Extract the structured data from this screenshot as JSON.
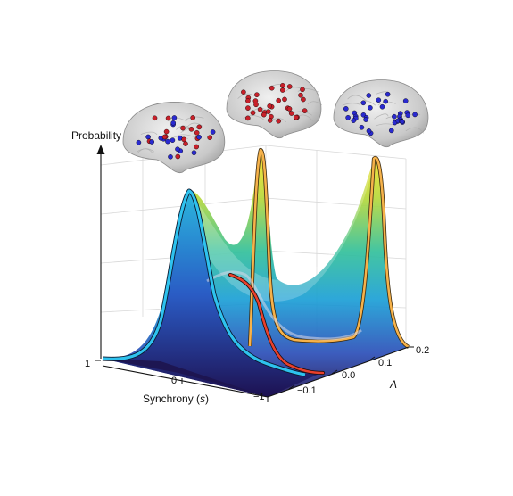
{
  "axes": {
    "vertical_label": "Probability",
    "synchrony_label_text": "Synchrony (",
    "synchrony_label_symbol": "s",
    "synchrony_label_close": ")",
    "lambda_label": "Λ",
    "synchrony_ticks": [
      "1",
      "0",
      "−1"
    ],
    "lambda_ticks": [
      "−0.1",
      "0.0",
      "0.1",
      "0.2"
    ]
  },
  "colors": {
    "front_curve": "#2ec2ee",
    "middle_curve": "#e8402c",
    "back_curve": "#f6b24a",
    "brain_red": "#c8202a",
    "brain_blue": "#2a2ad0",
    "surface_colormap": [
      "#2a1a6a",
      "#2c5cc4",
      "#1aa6d8",
      "#36c29a",
      "#b8d838",
      "#f6e02a"
    ]
  },
  "brains": [
    {
      "name": "brain-mixed",
      "state": "mixed",
      "dots": [
        "red",
        "blue"
      ]
    },
    {
      "name": "brain-synchronized",
      "state": "synchronized",
      "dots": [
        "red"
      ]
    },
    {
      "name": "brain-desynchronized",
      "state": "desynchronized",
      "dots": [
        "blue"
      ]
    }
  ]
}
